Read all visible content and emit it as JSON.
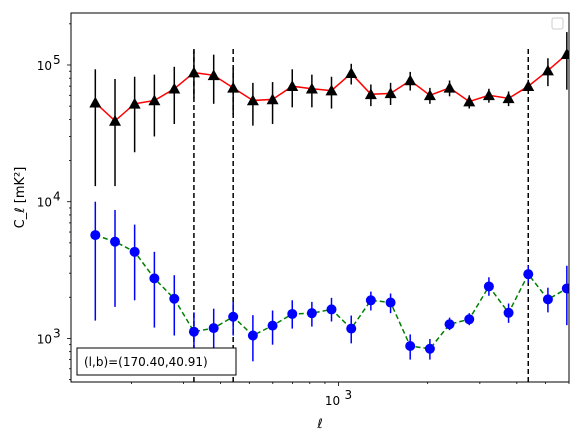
{
  "chart_data": {
    "type": "scatter",
    "xlabel": "ℓ",
    "ylabel": "C_ℓ  [mK²]",
    "xscale": "log",
    "yscale": "log",
    "xlim": [
      125,
      6000
    ],
    "ylim": [
      480,
      240000
    ],
    "x_tick_labels": [
      {
        "value": 1000,
        "base": "10",
        "exp": "3"
      }
    ],
    "y_tick_labels": [
      {
        "value": 1000,
        "base": "10",
        "exp": "3"
      },
      {
        "value": 10000,
        "base": "10",
        "exp": "4"
      },
      {
        "value": 100000,
        "base": "10",
        "exp": "5"
      }
    ],
    "x": [
      151,
      176,
      205,
      239,
      279,
      325,
      379,
      441,
      514,
      599,
      698,
      813,
      947,
      1104,
      1286,
      1499,
      1746,
      2035,
      2371,
      2763,
      3219,
      3751,
      4371,
      5093
    ],
    "series": [
      {
        "marker": "triangle",
        "color": "#000000",
        "line_color": "#ff0000",
        "line_style": "solid",
        "values": [
          53000,
          39000,
          52000,
          55000,
          67000,
          88000,
          84000,
          68000,
          55000,
          56000,
          70000,
          67000,
          65000,
          87000,
          61000,
          62000,
          77000,
          60000,
          68000,
          54000,
          60000,
          57000,
          70000,
          91000,
          120000
        ],
        "x_override": [
          151,
          176,
          205,
          239,
          279,
          325,
          379,
          441,
          514,
          599,
          698,
          813,
          947,
          1104,
          1286,
          1499,
          1746,
          2035,
          2371,
          2763,
          3219,
          3751,
          4371,
          5093,
          5900
        ],
        "err_low": [
          13000,
          13000,
          23000,
          30000,
          37000,
          57000,
          52000,
          43000,
          36000,
          37000,
          49000,
          49000,
          48000,
          72000,
          50000,
          51000,
          65000,
          52000,
          59000,
          48000,
          53000,
          50000,
          62000,
          70000,
          66000
        ],
        "err_high": [
          93000,
          79000,
          82000,
          85000,
          97000,
          128000,
          119000,
          96000,
          74000,
          75000,
          93000,
          85000,
          82000,
          102000,
          72000,
          74000,
          89000,
          68000,
          77000,
          60000,
          67000,
          64000,
          78000,
          112000,
          174000
        ]
      },
      {
        "marker": "circle",
        "color": "#0000ff",
        "line_color": "#008000",
        "line_style": "dashed",
        "values": [
          5700,
          5100,
          4300,
          2750,
          1950,
          1120,
          1190,
          1440,
          1050,
          1240,
          1510,
          1530,
          1630,
          1180,
          1900,
          1830,
          880,
          840,
          1270,
          1380,
          2400,
          1540,
          2950,
          1930,
          2320
        ],
        "x_override": [
          151,
          176,
          205,
          239,
          279,
          325,
          379,
          441,
          514,
          599,
          698,
          813,
          947,
          1104,
          1286,
          1499,
          1746,
          2035,
          2371,
          2763,
          3219,
          3751,
          4371,
          5093,
          5900
        ],
        "err_low": [
          1350,
          1700,
          1900,
          1200,
          1050,
          700,
          800,
          1050,
          680,
          900,
          1180,
          1220,
          1330,
          920,
          1600,
          1530,
          700,
          700,
          1150,
          1250,
          2050,
          1300,
          2550,
          1550,
          1250
        ],
        "err_high": [
          10000,
          8700,
          6800,
          4300,
          2900,
          1550,
          1650,
          1850,
          1480,
          1600,
          1900,
          1850,
          1980,
          1470,
          2200,
          2130,
          1070,
          990,
          1420,
          1530,
          2800,
          1800,
          3400,
          2350,
          3400
        ]
      }
    ],
    "vlines": [
      325,
      441,
      4371
    ],
    "vline_style": "dashed",
    "annotation": "(l,b)=(170.40,40.91)",
    "legend": "top-right",
    "grid": false
  }
}
